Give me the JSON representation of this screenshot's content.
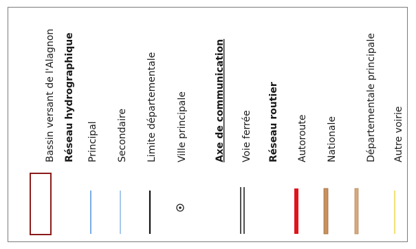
{
  "legend": {
    "basin": {
      "label": "Bassin versant de l'Alagnon",
      "color": "#8b1a1a",
      "icon": "basin-rectangle"
    },
    "hydro": {
      "header": "Réseau hydrographique",
      "principal": {
        "label": "Principal",
        "color": "#4a90d9"
      },
      "secondaire": {
        "label": "Secondaire",
        "color": "#6aa3dd"
      }
    },
    "limite": {
      "label": "Limite départementale",
      "color": "#111111"
    },
    "ville": {
      "label": "Ville principale",
      "icon": "city-point-icon"
    },
    "axe": {
      "header": "Axe de communication",
      "voie_ferree": {
        "label": "Voie ferrée",
        "color": "#222222"
      }
    },
    "routier": {
      "header": "Réseau routier",
      "autoroute": {
        "label": "Autoroute",
        "color": "#e0141c"
      },
      "nationale": {
        "label": "Nationale",
        "color": "#c9915c"
      },
      "departementale": {
        "label": "Départementale principale",
        "color": "#d6aa7e"
      },
      "autre": {
        "label": "Autre voirie",
        "color": "#f3e27a"
      }
    }
  }
}
